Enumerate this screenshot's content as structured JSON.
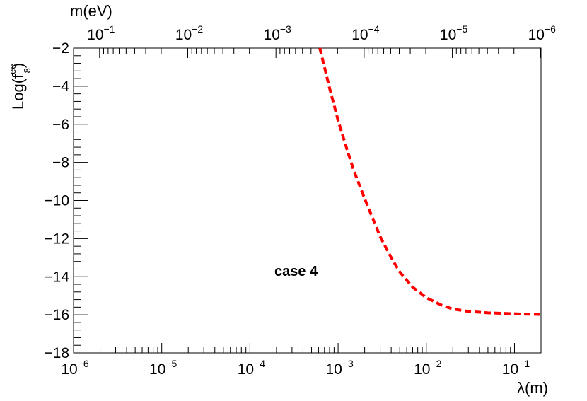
{
  "chart_data": {
    "type": "line",
    "x_axis_label": "λ(m)",
    "x_scale": "log",
    "xlim": [
      1e-06,
      0.2
    ],
    "x_tick_labels": [
      {
        "value": 1e-06,
        "base": "10",
        "exp": "−6"
      },
      {
        "value": 1e-05,
        "base": "10",
        "exp": "−5"
      },
      {
        "value": 0.0001,
        "base": "10",
        "exp": "−4"
      },
      {
        "value": 0.001,
        "base": "10",
        "exp": "−3"
      },
      {
        "value": 0.01,
        "base": "10",
        "exp": "−2"
      },
      {
        "value": 0.1,
        "base": "10",
        "exp": "−1"
      }
    ],
    "top_axis_label": "m(eV)",
    "top_axis_scale": "log (reversed)",
    "top_tick_labels": [
      {
        "value": 0.1,
        "base": "10",
        "exp": "−1"
      },
      {
        "value": 0.01,
        "base": "10",
        "exp": "−2"
      },
      {
        "value": 0.001,
        "base": "10",
        "exp": "−3"
      },
      {
        "value": 0.0001,
        "base": "10",
        "exp": "−4"
      },
      {
        "value": 1e-05,
        "base": "10",
        "exp": "−5"
      },
      {
        "value": 1e-06,
        "base": "10",
        "exp": "−6"
      }
    ],
    "y_axis_label_main": "Log(f",
    "y_axis_label_sup": "ee",
    "y_axis_label_sub": "8",
    "y_axis_label_close": ")",
    "ylim": [
      -18,
      -2
    ],
    "y_ticks": [
      -2,
      -4,
      -6,
      -8,
      -10,
      -12,
      -14,
      -16,
      -18
    ],
    "y_tick_labels": [
      "−2",
      "−4",
      "−6",
      "−8",
      "−10",
      "−12",
      "−14",
      "−16",
      "−18"
    ],
    "annotation": "case 4",
    "grid": false,
    "series": [
      {
        "color": "#ff0000",
        "style": "dashed",
        "points": [
          {
            "x": 0.00062,
            "y": -2.0
          },
          {
            "x": 0.0007,
            "y": -3.0
          },
          {
            "x": 0.0008,
            "y": -4.1
          },
          {
            "x": 0.0009,
            "y": -5.0
          },
          {
            "x": 0.001,
            "y": -5.8
          },
          {
            "x": 0.0012,
            "y": -7.0
          },
          {
            "x": 0.0015,
            "y": -8.4
          },
          {
            "x": 0.002,
            "y": -9.9
          },
          {
            "x": 0.0025,
            "y": -11.0
          },
          {
            "x": 0.003,
            "y": -11.9
          },
          {
            "x": 0.004,
            "y": -13.0
          },
          {
            "x": 0.005,
            "y": -13.75
          },
          {
            "x": 0.007,
            "y": -14.55
          },
          {
            "x": 0.01,
            "y": -15.1
          },
          {
            "x": 0.015,
            "y": -15.5
          },
          {
            "x": 0.02,
            "y": -15.7
          },
          {
            "x": 0.03,
            "y": -15.82
          },
          {
            "x": 0.05,
            "y": -15.9
          },
          {
            "x": 0.08,
            "y": -15.93
          },
          {
            "x": 0.12,
            "y": -15.96
          },
          {
            "x": 0.2,
            "y": -15.98
          }
        ]
      }
    ]
  }
}
